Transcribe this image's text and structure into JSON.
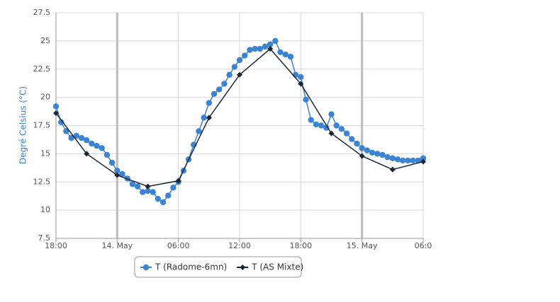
{
  "chart_data": {
    "type": "line",
    "y_label": "Degré Celsius (°C)",
    "xlim": [
      0,
      36
    ],
    "xticks": [
      {
        "value": 0,
        "label": "18:00"
      },
      {
        "value": 6,
        "label": "14. May"
      },
      {
        "value": 12,
        "label": "06:00"
      },
      {
        "value": 18,
        "label": "12:00"
      },
      {
        "value": 24,
        "label": "18:00"
      },
      {
        "value": 30,
        "label": "15. May"
      },
      {
        "value": 36,
        "label": "06:0"
      }
    ],
    "ylim": [
      7.5,
      27.5
    ],
    "yticks": [
      7.5,
      10,
      12.5,
      15,
      17.5,
      20,
      22.5,
      25,
      27.5
    ],
    "grid": true,
    "series": [
      {
        "name": "T (Radome-6mn)",
        "color": "#3b83d3",
        "marker": "circle",
        "x": [
          0,
          0.5,
          1,
          1.5,
          2,
          2.5,
          3,
          3.5,
          4,
          4.5,
          5,
          5.5,
          6,
          6.5,
          7,
          7.5,
          8,
          8.5,
          9,
          9.5,
          10,
          10.5,
          11,
          11.5,
          12,
          12.5,
          13,
          13.5,
          14,
          14.5,
          15,
          15.5,
          16,
          16.5,
          17,
          17.5,
          18,
          18.5,
          19,
          19.5,
          20,
          20.5,
          21,
          21.5,
          22,
          22.5,
          23,
          23.5,
          24,
          24.5,
          25,
          25.5,
          26,
          26.5,
          27,
          27.5,
          28,
          28.5,
          29,
          29.5,
          30,
          30.5,
          31,
          31.5,
          32,
          32.5,
          33,
          33.5,
          34,
          34.5,
          35,
          35.5,
          36
        ],
        "values": [
          19.2,
          17.8,
          17.0,
          16.4,
          16.6,
          16.4,
          16.2,
          15.9,
          15.7,
          15.5,
          14.9,
          14.2,
          13.5,
          13.2,
          12.8,
          12.3,
          12.1,
          11.6,
          11.7,
          11.6,
          11.0,
          10.7,
          11.3,
          12.0,
          12.5,
          13.5,
          14.5,
          15.8,
          17.0,
          18.2,
          19.5,
          20.3,
          20.7,
          21.2,
          22.0,
          22.7,
          23.3,
          23.7,
          24.2,
          24.3,
          24.3,
          24.5,
          24.7,
          25.0,
          24.0,
          23.8,
          23.6,
          22.0,
          21.8,
          19.8,
          18.0,
          17.6,
          17.5,
          17.3,
          18.5,
          17.5,
          17.2,
          16.8,
          16.3,
          15.9,
          15.5,
          15.3,
          15.1,
          15.0,
          14.9,
          14.7,
          14.6,
          14.5,
          14.4,
          14.4,
          14.4,
          14.4,
          14.6
        ]
      },
      {
        "name": "T (AS Mixte)",
        "color": "#1b2633",
        "marker": "diamond",
        "x": [
          0,
          3,
          6,
          9,
          12,
          15,
          18,
          21,
          24,
          27,
          30,
          33,
          36
        ],
        "values": [
          18.6,
          15.0,
          13.1,
          12.1,
          12.6,
          18.2,
          22.0,
          24.3,
          21.2,
          16.8,
          14.8,
          13.6,
          14.3
        ]
      }
    ],
    "legend": "bottom"
  }
}
